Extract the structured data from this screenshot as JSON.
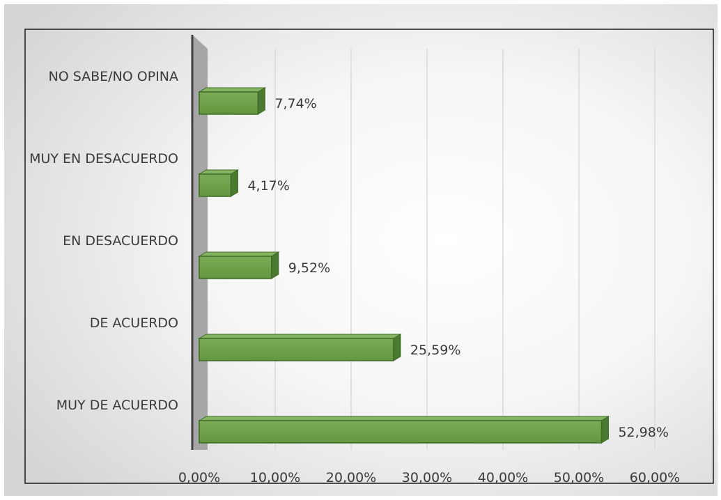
{
  "chart_data": {
    "type": "bar",
    "orientation": "horizontal",
    "categories": [
      "MUY DE ACUERDO",
      "DE ACUERDO",
      "EN DESACUERDO",
      "MUY EN DESACUERDO",
      "NO SABE/NO OPINA"
    ],
    "values": [
      52.98,
      25.59,
      9.52,
      4.17,
      7.74
    ],
    "data_labels": [
      "52,98%",
      "25,59%",
      "9,52%",
      "4,17%",
      "7,74%"
    ],
    "xlim": [
      0,
      60
    ],
    "x_ticks": [
      "0,00%",
      "10,00%",
      "20,00%",
      "30,00%",
      "40,00%",
      "50,00%",
      "60,00%"
    ],
    "grid": "vertical",
    "legend": "none",
    "colors": {
      "bar_front": "#70a04c",
      "bar_top": "#86b562",
      "bar_side": "#4a7a30",
      "bar_stroke": "#3d6a26",
      "wall": "#a6a6a6",
      "axis": "#404040",
      "grid": "#d9d9d9",
      "text": "#3a3a3a"
    }
  }
}
